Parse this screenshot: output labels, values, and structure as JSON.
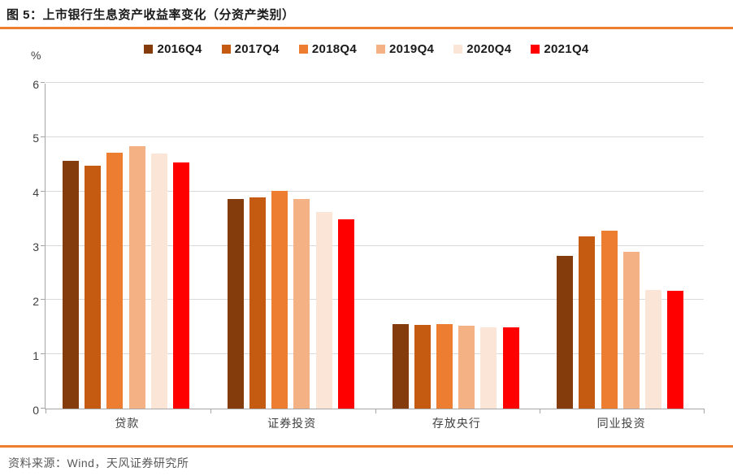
{
  "title": "图 5：上市银行生息资产收益率变化（分资产类别）",
  "source": "资料来源：Wind，天风证券研究所",
  "accent_color": "#ED7D31",
  "chart_data": {
    "type": "bar",
    "title": "上市银行生息资产收益率变化（分资产类别）",
    "ylabel": "%",
    "xlabel": "",
    "ylim": [
      0,
      6
    ],
    "yticks": [
      0,
      1,
      2,
      3,
      4,
      5,
      6
    ],
    "grid": true,
    "legend_position": "top",
    "categories": [
      "贷款",
      "证券投资",
      "存放央行",
      "同业投资"
    ],
    "series": [
      {
        "name": "2016Q4",
        "color": "#843C0C",
        "values": [
          4.56,
          3.86,
          1.55,
          2.81
        ]
      },
      {
        "name": "2017Q4",
        "color": "#C55A11",
        "values": [
          4.47,
          3.89,
          1.54,
          3.17
        ]
      },
      {
        "name": "2018Q4",
        "color": "#ED7D31",
        "values": [
          4.72,
          4.01,
          1.56,
          3.28
        ]
      },
      {
        "name": "2019Q4",
        "color": "#F4B183",
        "values": [
          4.84,
          3.86,
          1.53,
          2.89
        ]
      },
      {
        "name": "2020Q4",
        "color": "#FBE5D6",
        "values": [
          4.7,
          3.62,
          1.5,
          2.19
        ]
      },
      {
        "name": "2021Q4",
        "color": "#FF0000",
        "values": [
          4.54,
          3.48,
          1.5,
          2.17
        ]
      }
    ]
  }
}
